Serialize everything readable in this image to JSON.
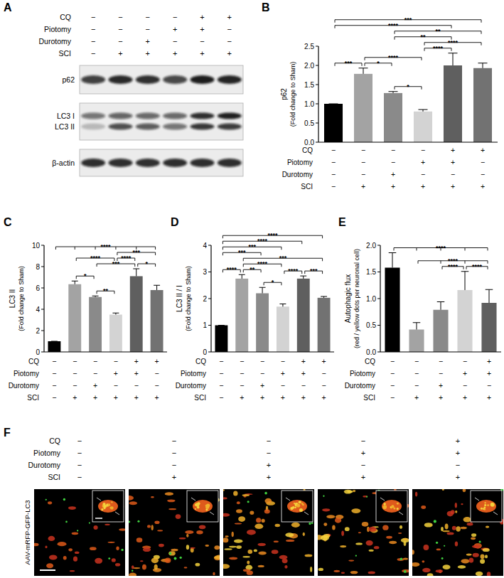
{
  "chart_data": [
    {
      "type": "bar",
      "title": "B",
      "y_label": [
        "p62",
        "(Fold change to Sham)"
      ],
      "categories": [
        null,
        null,
        null,
        null,
        null,
        null
      ],
      "values": [
        1.0,
        1.78,
        1.28,
        0.8,
        2.0,
        1.93
      ],
      "errors": [
        0,
        0.15,
        0.04,
        0.05,
        0.32,
        0.13
      ],
      "colors": [
        "#000000",
        "#a3a3a3",
        "#8a8a8a",
        "#d3d3d3",
        "#5f5f5f",
        "#727272"
      ],
      "ylim": [
        0,
        2.5
      ],
      "yticks": [
        {
          "value": 0,
          "label": "0.0"
        },
        0.5,
        {
          "value": 1,
          "label": "1.0"
        },
        1.5,
        {
          "value": 2,
          "label": "2.0"
        },
        2.5
      ],
      "grid": false,
      "tick_labels": "y",
      "conditions": [
        {
          "label": "CQ",
          "marks": [
            "−",
            "−",
            "−",
            "−",
            "+",
            "+"
          ]
        },
        {
          "label": "Piotomy",
          "marks": [
            "−",
            "−",
            "−",
            "+",
            "+",
            "−"
          ]
        },
        {
          "label": "Durotomy",
          "marks": [
            "−",
            "−",
            "+",
            "−",
            "−",
            "−"
          ]
        },
        {
          "label": "SCI",
          "marks": [
            "−",
            "+",
            "+",
            "+",
            "+",
            "+"
          ]
        }
      ],
      "significance": [
        {
          "from": 0,
          "to": 5,
          "label": "***"
        },
        {
          "from": 0,
          "to": 4,
          "label": "****"
        },
        {
          "from": 2,
          "to": 5,
          "label": "**"
        },
        {
          "from": 2,
          "to": 4,
          "label": "**"
        },
        {
          "from": 3,
          "to": 5,
          "label": "****"
        },
        {
          "from": 3,
          "to": 4,
          "label": "****"
        },
        {
          "from": 0,
          "to": 1,
          "label": "***"
        },
        {
          "from": 1,
          "to": 3,
          "label": "****"
        },
        {
          "from": 1,
          "to": 2,
          "label": "*"
        },
        {
          "from": 2,
          "to": 3,
          "label": "*"
        }
      ]
    },
    {
      "type": "bar",
      "title": "C",
      "y_label": [
        "LC3 II",
        "(Fold change to Sham)"
      ],
      "categories": [
        null,
        null,
        null,
        null,
        null,
        null
      ],
      "values": [
        1.0,
        6.35,
        5.15,
        3.5,
        7.1,
        5.8
      ],
      "errors": [
        0,
        0.3,
        0.1,
        0.15,
        0.7,
        0.45
      ],
      "colors": [
        "#000000",
        "#a3a3a3",
        "#8a8a8a",
        "#d3d3d3",
        "#5f5f5f",
        "#727272"
      ],
      "ylim": [
        0,
        10
      ],
      "yticks": [
        0,
        2,
        4,
        6,
        8,
        10
      ],
      "grid": false,
      "tick_labels": "y",
      "conditions": [
        {
          "label": "CQ",
          "marks": [
            "−",
            "−",
            "−",
            "−",
            "+",
            "+"
          ]
        },
        {
          "label": "Piotomy",
          "marks": [
            "−",
            "−",
            "−",
            "+",
            "+",
            "−"
          ]
        },
        {
          "label": "Durotomy",
          "marks": [
            "−",
            "−",
            "+",
            "−",
            "−",
            "−"
          ]
        },
        {
          "label": "SCI",
          "marks": [
            "−",
            "+",
            "+",
            "+",
            "+",
            "+"
          ]
        }
      ],
      "significance": [
        {
          "from": 0,
          "to": [
            1,
            2,
            3,
            4,
            5
          ],
          "label": "****"
        },
        {
          "from": 3,
          "to": 5,
          "label": "***"
        },
        {
          "from": 1,
          "to": 3,
          "label": "****"
        },
        {
          "from": 3,
          "to": 4,
          "label": "****"
        },
        {
          "from": 1,
          "to": 2,
          "label": "*"
        },
        {
          "from": 2,
          "to": 4,
          "label": "***"
        },
        {
          "from": 2,
          "to": 3,
          "label": "**"
        },
        {
          "from": 4,
          "to": 5,
          "label": "*"
        }
      ]
    },
    {
      "type": "bar",
      "title": "D",
      "y_label": [
        "LC3 II / I",
        "(Fold change to Sham)"
      ],
      "categories": [
        null,
        null,
        null,
        null,
        null,
        null
      ],
      "values": [
        1.0,
        2.75,
        2.2,
        1.7,
        2.75,
        2.03
      ],
      "errors": [
        0,
        0.15,
        0.22,
        0.1,
        0.1,
        0.05
      ],
      "colors": [
        "#000000",
        "#a3a3a3",
        "#8a8a8a",
        "#d3d3d3",
        "#5f5f5f",
        "#727272"
      ],
      "ylim": [
        0,
        4
      ],
      "yticks": [
        0,
        1,
        2,
        3,
        4
      ],
      "grid": false,
      "tick_labels": "y",
      "conditions": [
        {
          "label": "CQ",
          "marks": [
            "−",
            "−",
            "−",
            "−",
            "+",
            "+"
          ]
        },
        {
          "label": "Piotomy",
          "marks": [
            "−",
            "−",
            "−",
            "+",
            "+",
            "−"
          ]
        },
        {
          "label": "Durotomy",
          "marks": [
            "−",
            "−",
            "+",
            "−",
            "−",
            "−"
          ]
        },
        {
          "label": "SCI",
          "marks": [
            "−",
            "+",
            "+",
            "+",
            "+",
            "+"
          ]
        }
      ],
      "significance": [
        {
          "from": 0,
          "to": 5,
          "label": "****"
        },
        {
          "from": 0,
          "to": 4,
          "label": "****"
        },
        {
          "from": 0,
          "to": 3,
          "label": "***"
        },
        {
          "from": 0,
          "to": 2,
          "label": "***"
        },
        {
          "from": 1,
          "to": 5,
          "label": "***"
        },
        {
          "from": 1,
          "to": 3,
          "label": "****"
        },
        {
          "from": 0,
          "to": 1,
          "label": "****"
        },
        {
          "from": 1,
          "to": 2,
          "label": "**"
        },
        {
          "from": 3,
          "to": 4,
          "label": "****"
        },
        {
          "from": 4,
          "to": 5,
          "label": "***"
        },
        {
          "from": 2,
          "to": 3,
          "label": "*"
        }
      ]
    },
    {
      "type": "bar",
      "title": "E",
      "y_label": [
        "Autophagic flux",
        "(red / yellow dots per neuronal cell)"
      ],
      "categories": [
        null,
        null,
        null,
        null,
        null
      ],
      "values": [
        1.58,
        0.42,
        0.79,
        1.16,
        0.92
      ],
      "errors": [
        0.28,
        0.13,
        0.15,
        0.35,
        0.25
      ],
      "colors": [
        "#000000",
        "#a3a3a3",
        "#8a8a8a",
        "#d3d3d3",
        "#5f5f5f"
      ],
      "ylim": [
        0,
        2
      ],
      "yticks": [
        {
          "value": 0,
          "label": "0.0"
        },
        0.5,
        {
          "value": 1,
          "label": "1.0"
        },
        1.5,
        {
          "value": 2,
          "label": "2.0"
        }
      ],
      "grid": false,
      "tick_labels": "y",
      "conditions": [
        {
          "label": "CQ",
          "marks": [
            "−",
            "−",
            "−",
            "−",
            "+"
          ]
        },
        {
          "label": "Piotomy",
          "marks": [
            "−",
            "−",
            "−",
            "+",
            "+"
          ]
        },
        {
          "label": "Durotomy",
          "marks": [
            "−",
            "−",
            "+",
            "−",
            "−"
          ]
        },
        {
          "label": "SCI",
          "marks": [
            "−",
            "+",
            "+",
            "+",
            "+"
          ]
        }
      ],
      "significance": [
        {
          "from": 0,
          "to": [
            1,
            2,
            3,
            4
          ],
          "label": "****"
        },
        {
          "from": 1,
          "to": [
            2,
            3,
            4
          ],
          "label": "****"
        },
        {
          "from": 2,
          "to": 3,
          "label": "****"
        },
        {
          "from": 3,
          "to": 4,
          "label": "****"
        }
      ]
    }
  ],
  "blot": {
    "title": "A",
    "lanes": [
      {
        "label": "CQ",
        "marks": [
          "−",
          "−",
          "−",
          "−",
          "+",
          "+"
        ]
      },
      {
        "label": "Piotomy",
        "marks": [
          "−",
          "−",
          "−",
          "+",
          "+",
          "−"
        ]
      },
      {
        "label": "Durotomy",
        "marks": [
          "−",
          "−",
          "+",
          "−",
          "−",
          "−"
        ]
      },
      {
        "label": "SCI",
        "marks": [
          "−",
          "+",
          "+",
          "+",
          "+",
          "+"
        ]
      }
    ],
    "bands": [
      {
        "labels": [
          "p62"
        ]
      },
      {
        "labels": [
          "LC3 I",
          "LC3 II"
        ]
      },
      {
        "labels": [
          "β-actin"
        ]
      }
    ]
  },
  "images": {
    "title": "F",
    "label": "AAV-mRFP-GFP-LC3",
    "conditions": [
      {
        "label": "CQ",
        "marks": [
          "−",
          "−",
          "−",
          "−",
          "+"
        ]
      },
      {
        "label": "Piotomy",
        "marks": [
          "−",
          "−",
          "−",
          "+",
          "+"
        ]
      },
      {
        "label": "Durotomy",
        "marks": [
          "−",
          "−",
          "+",
          "−",
          "−"
        ]
      },
      {
        "label": "SCI",
        "marks": [
          "−",
          "+",
          "+",
          "+",
          "+"
        ]
      }
    ]
  }
}
